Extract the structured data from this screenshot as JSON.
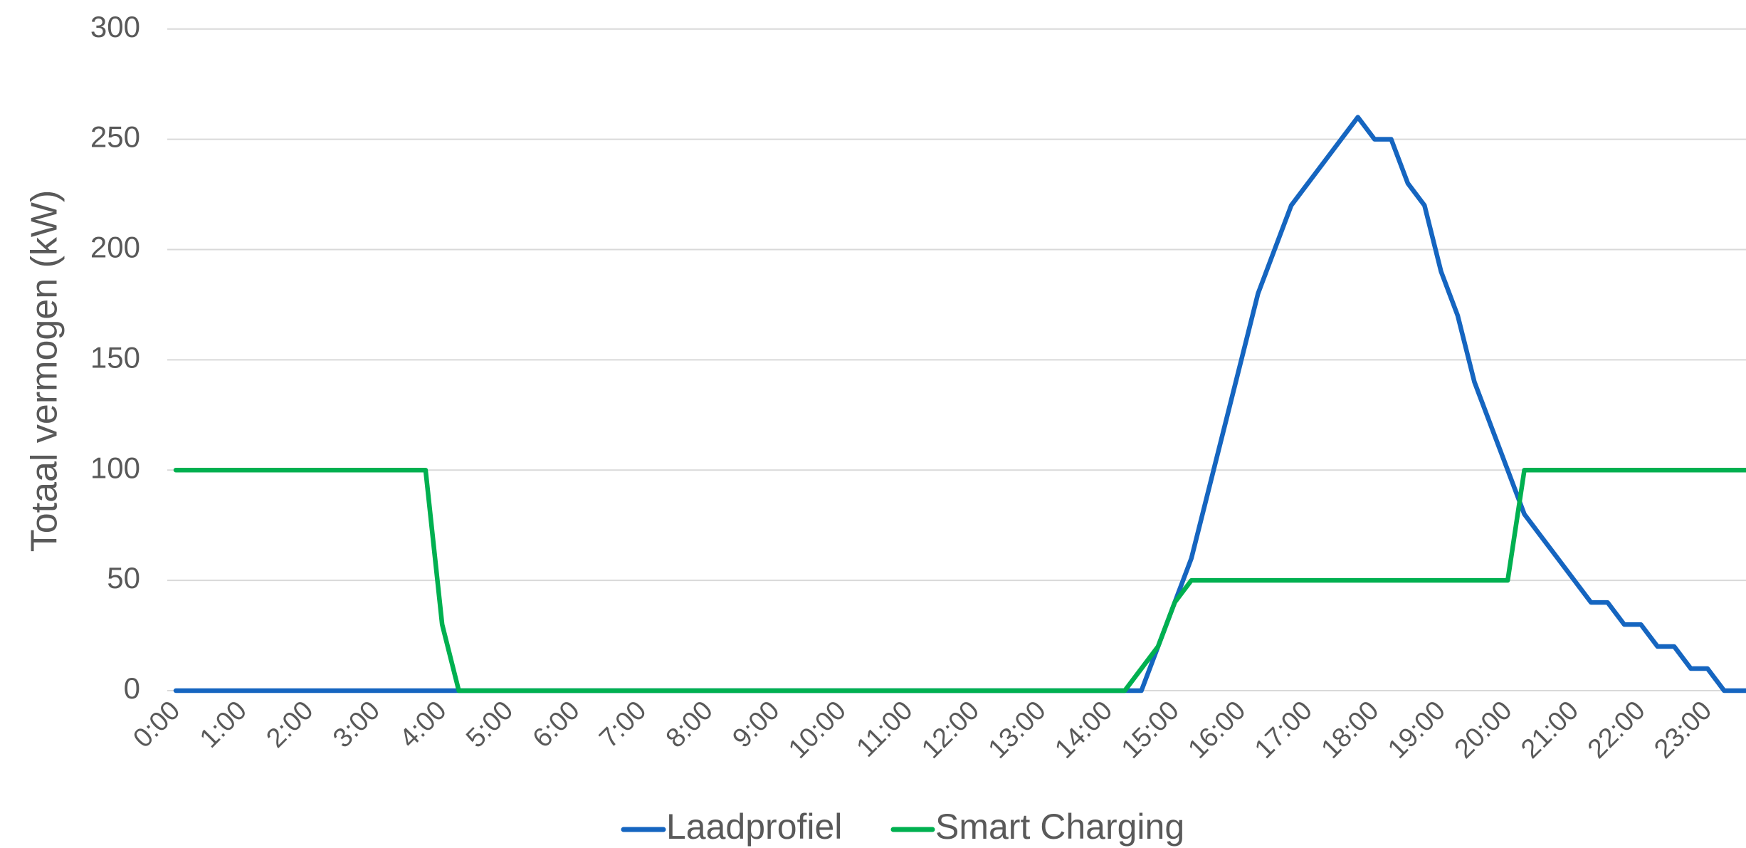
{
  "chart_data": {
    "type": "line",
    "y_axis_label": "Totaal vermogen (kW)",
    "categories": [
      "0:00",
      null,
      null,
      null,
      "1:00",
      null,
      null,
      null,
      "2:00",
      null,
      null,
      null,
      "3:00",
      null,
      null,
      null,
      "4:00",
      null,
      null,
      null,
      "5:00",
      null,
      null,
      null,
      "6:00",
      null,
      null,
      null,
      "7:00",
      null,
      null,
      null,
      "8:00",
      null,
      null,
      null,
      "9:00",
      null,
      null,
      null,
      "10:00",
      null,
      null,
      null,
      "11:00",
      null,
      null,
      null,
      "12:00",
      null,
      null,
      null,
      "13:00",
      null,
      null,
      null,
      "14:00",
      null,
      null,
      null,
      "15:00",
      null,
      null,
      null,
      "16:00",
      null,
      null,
      null,
      "17:00",
      null,
      null,
      null,
      "18:00",
      null,
      null,
      null,
      "19:00",
      null,
      null,
      null,
      "20:00",
      null,
      null,
      null,
      "21:00",
      null,
      null,
      null,
      "22:00",
      null,
      null,
      null,
      "23:00",
      null,
      null,
      null
    ],
    "series": [
      {
        "name": "Laadprofiel",
        "color": "#1565c0",
        "values": [
          0,
          0,
          0,
          0,
          0,
          0,
          0,
          0,
          0,
          0,
          0,
          0,
          0,
          0,
          0,
          0,
          0,
          0,
          0,
          0,
          0,
          0,
          0,
          0,
          0,
          0,
          0,
          0,
          0,
          0,
          0,
          0,
          0,
          0,
          0,
          0,
          0,
          0,
          0,
          0,
          0,
          0,
          0,
          0,
          0,
          0,
          0,
          0,
          0,
          0,
          0,
          0,
          0,
          0,
          0,
          0,
          0,
          0,
          0,
          20,
          40,
          60,
          90,
          120,
          150,
          180,
          200,
          220,
          230,
          240,
          250,
          260,
          250,
          250,
          230,
          220,
          190,
          170,
          140,
          120,
          100,
          80,
          70,
          60,
          50,
          40,
          40,
          30,
          30,
          20,
          20,
          10,
          10,
          0,
          0,
          0
        ]
      },
      {
        "name": "Smart Charging",
        "color": "#00b050",
        "values": [
          100,
          100,
          100,
          100,
          100,
          100,
          100,
          100,
          100,
          100,
          100,
          100,
          100,
          100,
          100,
          100,
          30,
          0,
          0,
          0,
          0,
          0,
          0,
          0,
          0,
          0,
          0,
          0,
          0,
          0,
          0,
          0,
          0,
          0,
          0,
          0,
          0,
          0,
          0,
          0,
          0,
          0,
          0,
          0,
          0,
          0,
          0,
          0,
          0,
          0,
          0,
          0,
          0,
          0,
          0,
          0,
          0,
          0,
          10,
          20,
          40,
          50,
          50,
          50,
          50,
          50,
          50,
          50,
          50,
          50,
          50,
          50,
          50,
          50,
          50,
          50,
          50,
          50,
          50,
          50,
          50,
          100,
          100,
          100,
          100,
          100,
          100,
          100,
          100,
          100,
          100,
          100,
          100,
          100,
          100,
          100
        ]
      }
    ],
    "ylim": [
      0,
      300
    ],
    "yticks": [
      0,
      50,
      100,
      150,
      200,
      250,
      300
    ],
    "grid": true,
    "legend": "bottom"
  }
}
